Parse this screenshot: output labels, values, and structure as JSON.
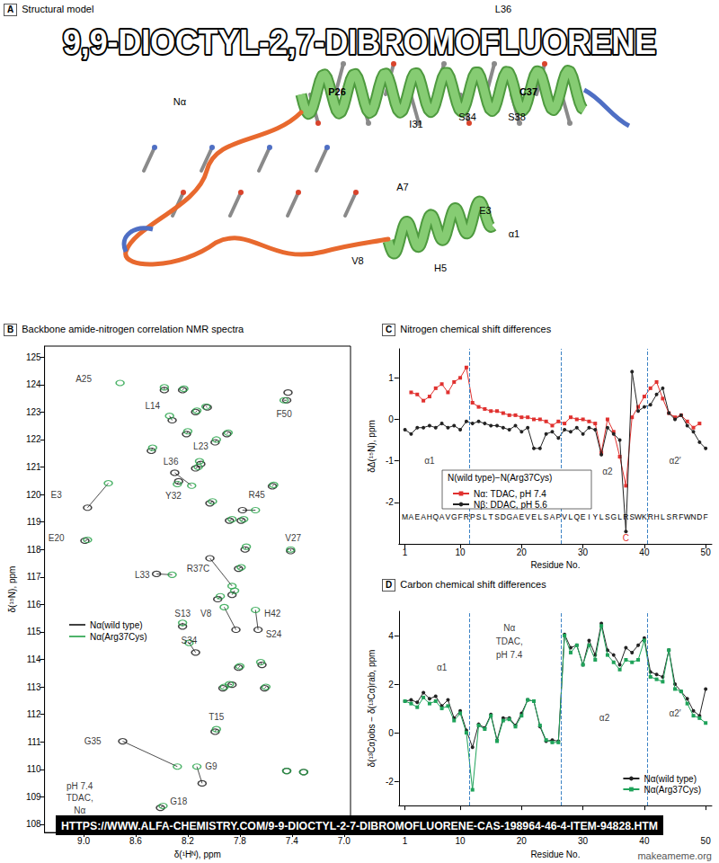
{
  "meme": {
    "top_text": "9,9-DIOCTYL-2,7-DIBROMOFLUORENE",
    "bottom_text": "HTTPS://WWW.ALFA-CHEMISTRY.COM/9-9-DIOCTYL-2-7-DIBROMOFLUORENE-CAS-198964-46-4-ITEM-94828.HTM",
    "watermark": "makeameme.org"
  },
  "panel_a": {
    "panel_label": "A",
    "title": "Structural model",
    "labels": [
      "Nα",
      "P26",
      "L36",
      "C37",
      "I31",
      "S34",
      "S38",
      "A7",
      "E3",
      "α1",
      "V8",
      "H5"
    ]
  },
  "chart_data": [
    {
      "panel_label": "B",
      "type": "scatter",
      "title": "Backbone amide-nitrogen correlation NMR spectra",
      "x_label": "δ(¹Hᴺ), ppm",
      "y_label": "δ(¹⁵N), ppm",
      "xlim": [
        9.3,
        6.95
      ],
      "xticks": [
        {
          "value": 9,
          "label": "9.0"
        },
        8.6,
        8.2,
        7.8,
        7.4,
        {
          "value": 7,
          "label": "7.0"
        }
      ],
      "ylim": [
        107.7,
        125.4
      ],
      "yticks": [
        108,
        109,
        110,
        111,
        112,
        113,
        114,
        115,
        116,
        117,
        118,
        119,
        120,
        121,
        122,
        123,
        124,
        125
      ],
      "grid": false,
      "legend": "left",
      "marker": "ellipse",
      "series": [
        {
          "name": "Nα(wild type)",
          "color": "#111111",
          "x": [
            8.41,
            8.09,
            8.7,
            7.99,
            7.63,
            8.14,
            8.24,
            7.83,
            7.66,
            8.44,
            8.03,
            8.99,
            7.41,
            8.97,
            8.27,
            7.78,
            8.3,
            8.1,
            8.32,
            null,
            7.44,
            7.93,
            7.86,
            7.81,
            7.61,
            7.97,
            7.86,
            7.81,
            7.76,
            7.88,
            7.79,
            7.55,
            8.03,
            8.14,
            7.99,
            7.9,
            8.21,
            8.14,
            8.05,
            8.38,
            8.24,
            8.48,
            7.44,
            7.31,
            7.43
          ],
          "y": [
            108.6,
            109.49,
            111.02,
            111.37,
            113.8,
            114.25,
            115.2,
            115.08,
            115.08,
            117.11,
            117.68,
            118.32,
            117.94,
            119.52,
            120.48,
            119.43,
            120.79,
            121.11,
            122.7,
            null,
            123.43,
            112.95,
            113.08,
            113.7,
            112.95,
            116.19,
            116.35,
            117.3,
            118.0,
            119.05,
            119.05,
            120.3,
            119.68,
            120.95,
            121.9,
            122.2,
            122.2,
            123.0,
            123.17,
            123.8,
            123.8,
            121.59,
            109.94,
            109.9,
            123.71
          ]
        },
        {
          "name": "Nα(Arg37Cys)",
          "color": "#22a045",
          "x": [
            8.39,
            8.13,
            8.28,
            7.98,
            7.64,
            8.19,
            8.24,
            7.92,
            7.68,
            8.32,
            7.86,
            8.97,
            7.41,
            8.81,
            8.28,
            7.68,
            8.17,
            8.11,
            8.34,
            8.72,
            7.46,
            7.92,
            7.88,
            7.8,
            7.6,
            7.95,
            7.84,
            7.79,
            7.75,
            7.86,
            7.77,
            7.54,
            8.01,
            8.12,
            7.98,
            7.89,
            8.2,
            8.13,
            8.06,
            8.38,
            8.23,
            8.47,
            7.44,
            7.31,
            null
          ],
          "y": [
            108.67,
            110.1,
            110.1,
            111.46,
            113.9,
            114.6,
            115.33,
            115.9,
            115.8,
            117.08,
            116.67,
            118.35,
            118.0,
            120.41,
            120.38,
            119.43,
            120.32,
            121.21,
            122.86,
            124.06,
            123.43,
            113.0,
            113.1,
            113.75,
            113.0,
            116.3,
            116.5,
            117.35,
            118.1,
            119.1,
            119.1,
            120.35,
            119.75,
            121.0,
            122.0,
            122.25,
            122.3,
            123.05,
            123.2,
            123.9,
            123.85,
            121.7,
            109.94,
            109.9,
            null
          ]
        }
      ],
      "annotations": [
        {
          "text": "Nα",
          "x": 9.03,
          "y": 108.5
        },
        {
          "text": "TDAC,",
          "x": 9.03,
          "y": 108.95
        },
        {
          "text": "pH 7.4",
          "x": 9.03,
          "y": 109.4
        },
        {
          "text": "G18",
          "x": 8.27,
          "y": 108.83
        },
        {
          "text": "G9",
          "x": 8.02,
          "y": 110.1
        },
        {
          "text": "G35",
          "x": 8.93,
          "y": 111.02
        },
        {
          "text": "T15",
          "x": 7.98,
          "y": 111.9
        },
        {
          "text": "S24",
          "x": 7.54,
          "y": 114.92
        },
        {
          "text": "S34",
          "x": 8.19,
          "y": 114.7
        },
        {
          "text": "S13",
          "x": 8.24,
          "y": 115.68
        },
        {
          "text": "V8",
          "x": 8.06,
          "y": 115.68
        },
        {
          "text": "H42",
          "x": 7.55,
          "y": 115.68
        },
        {
          "text": "L33",
          "x": 8.55,
          "y": 117.08
        },
        {
          "text": "R37C",
          "x": 8.12,
          "y": 117.3
        },
        {
          "text": "E20",
          "x": 9.21,
          "y": 118.41
        },
        {
          "text": "V27",
          "x": 7.39,
          "y": 118.41
        },
        {
          "text": "E3",
          "x": 9.21,
          "y": 120.0
        },
        {
          "text": "Y32",
          "x": 8.31,
          "y": 119.95
        },
        {
          "text": "R45",
          "x": 7.67,
          "y": 120.0
        },
        {
          "text": "L36",
          "x": 8.33,
          "y": 121.21
        },
        {
          "text": "L23",
          "x": 8.1,
          "y": 121.75
        },
        {
          "text": "L14",
          "x": 8.47,
          "y": 123.24
        },
        {
          "text": "A25",
          "x": 9.0,
          "y": 124.22
        },
        {
          "text": "F50",
          "x": 7.46,
          "y": 122.92
        }
      ]
    },
    {
      "panel_label": "C",
      "type": "line",
      "title": "Nitrogen chemical shift differences",
      "x_label": "Residue No.",
      "y_label": "δΔ(¹⁵N), ppm",
      "x": [
        1,
        2,
        3,
        4,
        5,
        6,
        7,
        8,
        9,
        10,
        11,
        12,
        13,
        14,
        15,
        16,
        17,
        18,
        19,
        20,
        21,
        22,
        23,
        24,
        25,
        26,
        27,
        28,
        29,
        30,
        31,
        32,
        33,
        34,
        35,
        36,
        37,
        38,
        39,
        40,
        41,
        42,
        43,
        44,
        45,
        46,
        47,
        48,
        49,
        50
      ],
      "xlim": [
        0,
        51
      ],
      "xticks": [
        1,
        10,
        20,
        30,
        40,
        50
      ],
      "ylim": [
        -3,
        1.7
      ],
      "yticks": [
        -2,
        -1,
        0,
        1
      ],
      "grid": false,
      "legend": "bottom left",
      "legend_title": "N(wild type)−N(Arg37Cys)",
      "series": [
        {
          "name": "Nα: TDAC, pH 7.4",
          "color": "#e0312f",
          "marker": "square",
          "values": [
            null,
            0.65,
            0.6,
            0.45,
            0.55,
            0.75,
            0.85,
            0.65,
            0.9,
            1.0,
            1.25,
            0.4,
            0.3,
            0.25,
            0.2,
            0.2,
            0.15,
            0.1,
            0.1,
            0.05,
            0.05,
            0.0,
            0.0,
            -0.05,
            -0.15,
            -0.05,
            -0.1,
            0.05,
            0.0,
            0.0,
            -0.05,
            -0.1,
            -0.8,
            0.0,
            -0.3,
            -0.9,
            -1.6,
            0.05,
            0.3,
            0.55,
            0.75,
            0.9,
            0.5,
            0.15,
            0.05,
            0.1,
            -0.05,
            -0.2,
            -0.1,
            null
          ]
        },
        {
          "name": "Nβ: DDAC, pH 5.6",
          "color": "#222222",
          "marker": "circle",
          "values": [
            -0.25,
            -0.35,
            -0.2,
            -0.2,
            -0.15,
            -0.2,
            -0.1,
            -0.2,
            -0.15,
            -0.25,
            -0.05,
            -0.1,
            -0.05,
            -0.1,
            -0.15,
            -0.15,
            -0.2,
            -0.25,
            -0.15,
            -0.3,
            -0.2,
            -0.7,
            -0.7,
            -0.35,
            -0.3,
            -0.45,
            -0.25,
            -0.3,
            -0.2,
            -0.35,
            -0.2,
            -0.25,
            -0.85,
            -0.2,
            -0.35,
            -0.5,
            -2.7,
            1.15,
            0.2,
            0.3,
            0.35,
            0.6,
            0.75,
            0.15,
            0.0,
            0.1,
            -0.15,
            -0.3,
            -0.55,
            -0.7
          ]
        }
      ],
      "dividers": [
        11.5,
        26.5,
        40.5
      ],
      "annotations": [
        {
          "text": "α1",
          "x": 5,
          "y": -1.0
        },
        {
          "text": "α2",
          "x": 34,
          "y": -1.25
        },
        {
          "text": "α2′",
          "x": 45,
          "y": -1.0
        }
      ],
      "sequence": "MAEAHQAVGFRPSLTSDGAEVELSAPVLQEIYLSGLRSWKRHLSRFWNDF",
      "mutation": {
        "text": "C",
        "x": 37,
        "color": "#e0312f"
      }
    },
    {
      "panel_label": "D",
      "type": "line",
      "title": "Carbon chemical shift differences",
      "x_label": "Residue No.",
      "y_label": "δ(¹³Cα)obs − δ(¹³Cα)rab, ppm",
      "x": [
        1,
        2,
        3,
        4,
        5,
        6,
        7,
        8,
        9,
        10,
        11,
        12,
        13,
        14,
        15,
        16,
        17,
        18,
        19,
        20,
        21,
        22,
        23,
        24,
        25,
        26,
        27,
        28,
        29,
        30,
        31,
        32,
        33,
        34,
        35,
        36,
        37,
        38,
        39,
        40,
        41,
        42,
        43,
        44,
        45,
        46,
        47,
        48,
        49,
        50
      ],
      "xlim": [
        0,
        51
      ],
      "xticks": [
        1,
        10,
        20,
        30,
        40,
        50
      ],
      "ylim": [
        -3,
        5
      ],
      "yticks": [
        -2,
        0,
        2,
        4
      ],
      "grid": false,
      "legend": "bottom right",
      "series": [
        {
          "name": "Nα(wild type)",
          "color": "#222222",
          "marker": "circle",
          "values": [
            1.3,
            1.35,
            1.25,
            1.65,
            1.4,
            1.5,
            1.1,
            1.35,
            0.6,
            0.9,
            0.1,
            -0.6,
            0.35,
            0.2,
            0.75,
            -0.3,
            0.6,
            0.6,
            0.3,
            0.8,
            1.35,
            1.3,
            0.25,
            -0.35,
            -0.3,
            -0.35,
            4.05,
            3.5,
            3.6,
            2.8,
            3.8,
            3.2,
            4.5,
            3.4,
            3.2,
            2.8,
            3.5,
            3.3,
            3.6,
            3.9,
            2.5,
            2.4,
            2.3,
            3.4,
            2.0,
            1.7,
            1.4,
            0.9,
            0.7,
            1.8
          ]
        },
        {
          "name": "Nα(Arg37Cys)",
          "color": "#1fa35a",
          "marker": "square",
          "values": [
            1.3,
            1.2,
            1.05,
            1.45,
            1.2,
            1.3,
            1.0,
            1.1,
            0.5,
            0.8,
            0.0,
            -2.35,
            0.3,
            0.15,
            0.7,
            -0.35,
            0.5,
            0.55,
            0.25,
            0.7,
            1.35,
            1.3,
            0.3,
            -0.3,
            -0.4,
            -0.4,
            4.0,
            3.3,
            3.6,
            2.8,
            3.6,
            3.0,
            4.4,
            3.2,
            2.9,
            2.6,
            3.0,
            2.9,
            3.0,
            3.8,
            2.3,
            2.2,
            2.1,
            3.4,
            1.8,
            1.7,
            1.2,
            0.7,
            0.6,
            0.4
          ]
        }
      ],
      "dividers": [
        11.5,
        26.5,
        40.5
      ],
      "annotations": [
        {
          "text": "Nα",
          "x": 18,
          "y": 4.3
        },
        {
          "text": "TDAC,",
          "x": 18,
          "y": 3.75
        },
        {
          "text": "pH 7.4",
          "x": 18,
          "y": 3.2
        },
        {
          "text": "α1",
          "x": 7,
          "y": 2.7
        },
        {
          "text": "α2",
          "x": 33.5,
          "y": 0.6
        },
        {
          "text": "α2′",
          "x": 45,
          "y": 0.8
        }
      ]
    }
  ]
}
